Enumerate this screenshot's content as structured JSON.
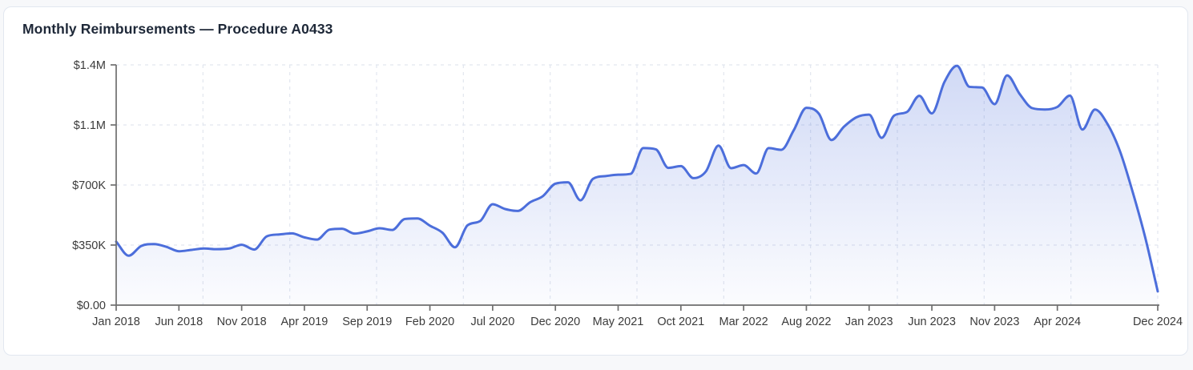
{
  "card": {
    "title": "Monthly Reimbursements — Procedure A0433"
  },
  "chart_data": {
    "type": "area",
    "title": "Monthly Reimbursements — Procedure A0433",
    "x_start": "Jan 2018",
    "x_end": "Dec 2024",
    "unit": "USD thousands",
    "ylim_k": [
      0,
      1400
    ],
    "y_tick_values_k": [
      0,
      350,
      700,
      1050,
      1400
    ],
    "y_tick_labels": [
      "$0.00",
      "$350K",
      "$700K",
      "$1.1M",
      "$1.4M"
    ],
    "x_tick_labels": [
      "Jan 2018",
      "Jun 2018",
      "Nov 2018",
      "Apr 2019",
      "Sep 2019",
      "Feb 2020",
      "Jul 2020",
      "Dec 2020",
      "May 2021",
      "Oct 2021",
      "Mar 2022",
      "Aug 2022",
      "Jan 2023",
      "Jun 2023",
      "Nov 2023",
      "Apr 2024",
      "Dec 2024"
    ],
    "x_tick_month_indices": [
      0,
      5,
      10,
      15,
      20,
      25,
      30,
      35,
      40,
      45,
      50,
      55,
      60,
      65,
      70,
      75,
      83
    ],
    "x_grid_divisions": 12,
    "grid": "dashed",
    "legend": "none",
    "months": [
      "Jan 2018",
      "Feb 2018",
      "Mar 2018",
      "Apr 2018",
      "May 2018",
      "Jun 2018",
      "Jul 2018",
      "Aug 2018",
      "Sep 2018",
      "Oct 2018",
      "Nov 2018",
      "Dec 2018",
      "Jan 2019",
      "Feb 2019",
      "Mar 2019",
      "Apr 2019",
      "May 2019",
      "Jun 2019",
      "Jul 2019",
      "Aug 2019",
      "Sep 2019",
      "Oct 2019",
      "Nov 2019",
      "Dec 2019",
      "Jan 2020",
      "Feb 2020",
      "Mar 2020",
      "Apr 2020",
      "May 2020",
      "Jun 2020",
      "Jul 2020",
      "Aug 2020",
      "Sep 2020",
      "Oct 2020",
      "Nov 2020",
      "Dec 2020",
      "Jan 2021",
      "Feb 2021",
      "Mar 2021",
      "Apr 2021",
      "May 2021",
      "Jun 2021",
      "Jul 2021",
      "Aug 2021",
      "Sep 2021",
      "Oct 2021",
      "Nov 2021",
      "Dec 2021",
      "Jan 2022",
      "Feb 2022",
      "Mar 2022",
      "Apr 2022",
      "May 2022",
      "Jun 2022",
      "Jul 2022",
      "Aug 2022",
      "Sep 2022",
      "Oct 2022",
      "Nov 2022",
      "Dec 2022",
      "Jan 2023",
      "Feb 2023",
      "Mar 2023",
      "Apr 2023",
      "May 2023",
      "Jun 2023",
      "Jul 2023",
      "Aug 2023",
      "Sep 2023",
      "Oct 2023",
      "Nov 2023",
      "Dec 2023",
      "Jan 2024",
      "Feb 2024",
      "Mar 2024",
      "Apr 2024",
      "May 2024",
      "Jun 2024",
      "Jul 2024",
      "Aug 2024",
      "Sep 2024",
      "Oct 2024",
      "Nov 2024",
      "Dec 2024"
    ],
    "series": [
      {
        "name": "Monthly reimbursements ($K)",
        "values_k": [
          370,
          288,
          345,
          356,
          340,
          314,
          322,
          330,
          326,
          330,
          352,
          324,
          401,
          412,
          418,
          395,
          382,
          440,
          445,
          417,
          430,
          448,
          438,
          502,
          505,
          463,
          422,
          337,
          465,
          490,
          588,
          560,
          549,
          600,
          635,
          708,
          716,
          611,
          736,
          752,
          760,
          765,
          915,
          908,
          800,
          810,
          740,
          780,
          930,
          798,
          816,
          767,
          915,
          905,
          1020,
          1150,
          1115,
          962,
          1040,
          1095,
          1110,
          975,
          1105,
          1125,
          1220,
          1117,
          1300,
          1395,
          1272,
          1268,
          1171,
          1339,
          1230,
          1148,
          1140,
          1155,
          1221,
          1023,
          1140,
          1055,
          895,
          660,
          395,
          80
        ]
      }
    ],
    "colors": {
      "line": "#4C6EDB",
      "fill_top": "rgba(76,110,219,0.26)",
      "fill_bottom": "rgba(76,110,219,0.02)",
      "grid": "#e2e6ef",
      "axis": "#6f6f6f",
      "tick_text": "#3b3b3b",
      "title_text": "#1e2838"
    }
  }
}
